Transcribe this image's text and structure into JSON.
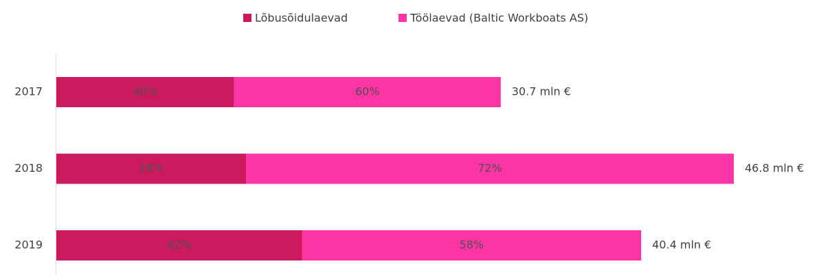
{
  "chart_data": {
    "type": "bar",
    "orientation": "horizontal",
    "stacked": true,
    "categories": [
      "2017",
      "2018",
      "2019"
    ],
    "series": [
      {
        "name": "Lõbusõidulaevad",
        "color": "#cc1a5e",
        "values": [
          40,
          28,
          42
        ],
        "value_labels": [
          "40%",
          "28%",
          "42%"
        ]
      },
      {
        "name": "Töölaevad (Baltic Workboats AS)",
        "color": "#fc34a4",
        "values": [
          60,
          72,
          58
        ],
        "value_labels": [
          "60%",
          "72%",
          "58%"
        ]
      }
    ],
    "totals": {
      "values": [
        30.7,
        46.8,
        40.4
      ],
      "value_labels": [
        "30.7 mln €",
        "46.8 mln €",
        "40.4 mln €"
      ]
    },
    "legend": "top"
  }
}
